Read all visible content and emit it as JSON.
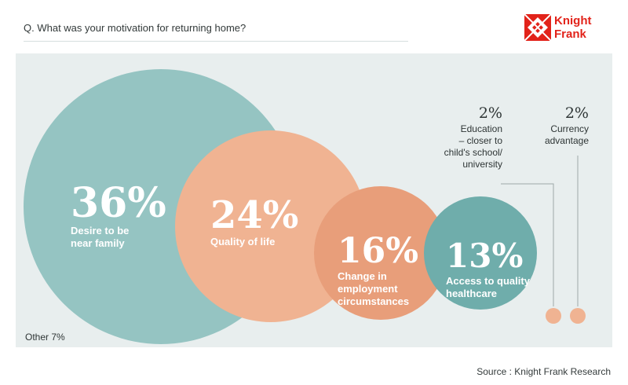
{
  "question": "Q. What was your motivation for returning home?",
  "logo": {
    "line1": "Knight",
    "line2": "Frank",
    "brand_color": "#e2231a"
  },
  "source": "Source : Knight Frank Research",
  "chart_data": {
    "type": "bubble",
    "title": "Q. What was your motivation for returning home?",
    "items": [
      {
        "label": "Desire to be near family",
        "label_lines": [
          "Desire to be",
          "near family"
        ],
        "value": 36,
        "value_label": "36%",
        "color": "#95c4c2"
      },
      {
        "label": "Quality of life",
        "label_lines": [
          "Quality of life"
        ],
        "value": 24,
        "value_label": "24%",
        "color": "#f0b392"
      },
      {
        "label": "Change in employment circumstances",
        "label_lines": [
          "Change in",
          "employment",
          "circumstances"
        ],
        "value": 16,
        "value_label": "16%",
        "color": "#e89e7a"
      },
      {
        "label": "Access to quality healthcare",
        "label_lines": [
          "Access to quality",
          "healthcare"
        ],
        "value": 13,
        "value_label": "13%",
        "color": "#6fadab"
      },
      {
        "label": "Education – closer to child's school/ university",
        "label_lines": [
          "Education",
          "– closer to",
          "child's school/",
          "university"
        ],
        "value": 2,
        "value_label": "2%",
        "color": "#f0b392"
      },
      {
        "label": "Currency advantage",
        "label_lines": [
          "Currency",
          "advantage"
        ],
        "value": 2,
        "value_label": "2%",
        "color": "#f0b392"
      }
    ],
    "other": {
      "label": "Other 7%",
      "value": 7
    }
  }
}
